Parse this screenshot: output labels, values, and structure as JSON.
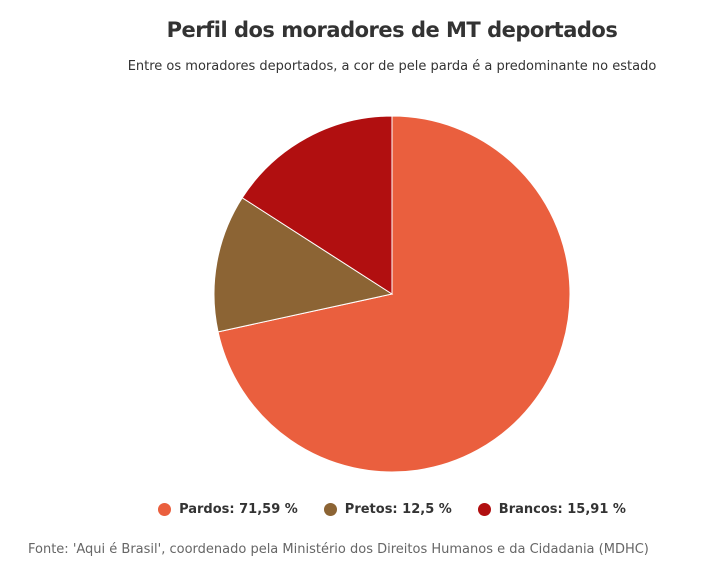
{
  "chart_data": {
    "type": "pie",
    "title": "Perfil dos moradores de MT deportados",
    "subtitle": "Entre os moradores deportados, a cor de pele parda é a predominante no estado",
    "slices": [
      {
        "label": "Pardos",
        "value": 71.59,
        "legend": "Pardos: 71,59 %",
        "color": "#EA5F3E"
      },
      {
        "label": "Pretos",
        "value": 12.5,
        "legend": "Pretos: 12,5 %",
        "color": "#8C6434"
      },
      {
        "label": "Brancos",
        "value": 15.91,
        "legend": "Brancos: 15,91 %",
        "color": "#B10F10"
      }
    ],
    "legend_position": "bottom",
    "source": "Fonte: 'Aqui é Brasil', coordenado pela Ministério dos Direitos Humanos e da Cidadania (MDHC)"
  }
}
